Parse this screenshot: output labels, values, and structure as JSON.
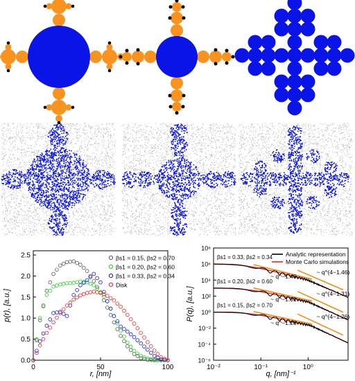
{
  "colors": {
    "blue": "#0a14e6",
    "orange": "#f7931e",
    "black": "#000000",
    "grey_points": "#b8b8b8",
    "green": "#22cc22",
    "red": "#ee2222",
    "dark_grey": "#555555",
    "fit_orange": "#ef8c10"
  },
  "diagrams": [
    {
      "name": "fractal-disk-two-level"
    },
    {
      "name": "fractal-disk-three-level"
    },
    {
      "name": "fractal-cross-of-disks"
    }
  ],
  "simulations": [
    {
      "name": "monte-carlo-two-level"
    },
    {
      "name": "monte-carlo-three-level"
    },
    {
      "name": "monte-carlo-cross"
    }
  ],
  "chart_data": [
    {
      "type": "scatter",
      "xlabel": "r, [nm]",
      "ylabel": "p(r), [a.u.]",
      "xlim": [
        0,
        100
      ],
      "ylim": [
        0,
        2.6
      ],
      "xticks": [
        0,
        50,
        100
      ],
      "yticks": [
        0.0,
        0.5,
        1.0,
        1.5,
        2.0,
        2.5
      ],
      "ytick_labels": [
        "0.0",
        "0.5",
        "1.0",
        "1.5",
        "2.0",
        "2.5"
      ],
      "legend_position": "top-right",
      "series": [
        {
          "name": "βs1 = 0.15, βs2 = 0.70",
          "color_key": "dark_grey",
          "x": [
            0,
            5,
            10,
            15,
            20,
            25,
            30,
            35,
            40,
            45,
            50,
            55,
            60,
            65,
            70,
            75,
            80,
            85,
            90,
            95,
            100
          ],
          "y": [
            0.0,
            0.95,
            1.65,
            2.05,
            2.25,
            2.33,
            2.35,
            2.27,
            2.12,
            1.88,
            1.6,
            1.25,
            0.9,
            0.58,
            0.33,
            0.15,
            0.05,
            0.01,
            0.0,
            0.0,
            0.0
          ]
        },
        {
          "name": "βs1 = 0.20, βs2 = 0.60",
          "color_key": "green",
          "x": [
            0,
            5,
            10,
            15,
            20,
            25,
            30,
            35,
            40,
            45,
            50,
            55,
            60,
            65,
            70,
            75,
            80,
            85,
            90,
            95,
            100
          ],
          "y": [
            0.0,
            1.0,
            1.55,
            1.75,
            1.8,
            1.83,
            1.84,
            1.87,
            1.85,
            1.78,
            1.62,
            1.4,
            1.05,
            0.7,
            0.42,
            0.22,
            0.1,
            0.04,
            0.01,
            0.0,
            0.0
          ]
        },
        {
          "name": "βs1 = 0.33, βs2 = 0.34",
          "color_key": "blue",
          "x": [
            0,
            5,
            10,
            15,
            20,
            25,
            30,
            35,
            40,
            45,
            50,
            55,
            60,
            65,
            70,
            75,
            80,
            85,
            90,
            95,
            100
          ],
          "y": [
            0.0,
            0.45,
            0.82,
            1.12,
            1.15,
            1.05,
            1.55,
            1.78,
            1.9,
            2.05,
            1.85,
            1.4,
            1.05,
            0.8,
            0.68,
            0.55,
            0.4,
            0.25,
            0.1,
            0.02,
            0.0
          ]
        },
        {
          "name": "Disk",
          "color_key": "red",
          "x": [
            0,
            5,
            10,
            15,
            20,
            25,
            30,
            35,
            40,
            45,
            50,
            55,
            60,
            65,
            70,
            75,
            80,
            85,
            90,
            95,
            100
          ],
          "y": [
            0.0,
            0.35,
            0.65,
            0.9,
            1.12,
            1.3,
            1.44,
            1.54,
            1.6,
            1.63,
            1.6,
            1.53,
            1.42,
            1.27,
            1.08,
            0.87,
            0.65,
            0.43,
            0.23,
            0.07,
            0.0
          ]
        }
      ]
    },
    {
      "type": "line",
      "xlabel": "q, [nm]⁻¹",
      "ylabel": "P(q), [a.u.]",
      "xscale": "log",
      "yscale": "log",
      "xlim": [
        0.01,
        7
      ],
      "ylim": [
        1e-06,
        100000000.0
      ],
      "xtick_labels": [
        "10⁻²",
        "10⁻¹",
        "10⁰"
      ],
      "xticks": [
        0.01,
        0.1,
        1
      ],
      "ytick_labels": [
        "10⁻⁶",
        "10⁻⁴",
        "10⁻²",
        "10⁰",
        "10²",
        "10⁴",
        "10⁶",
        "10⁸"
      ],
      "yticks": [
        1e-06,
        0.0001,
        0.01,
        1,
        100.0,
        10000.0,
        1000000.0,
        100000000.0
      ],
      "legend_position": "top-right",
      "legend": [
        "Analytic representation",
        "Monte Carlo simulations"
      ],
      "series": [
        {
          "name": "Analytic representation",
          "color_key": "black"
        },
        {
          "name": "Monte Carlo simulations",
          "color_key": "red"
        }
      ],
      "curves": [
        {
          "label": "βs1 = 0.33, βs2 = 0.34",
          "plateau": 1000000,
          "knee": 0.045,
          "slope1": -1.46,
          "slope2": -2.54,
          "cross": 0.9,
          "fit1_label": "~ q^−1.46",
          "fit2_label": "~ q^(4−1.46)"
        },
        {
          "label": "βs1 = 0.20, βs2 = 0.60",
          "plateau": 1000,
          "knee": 0.05,
          "slope1": -1.31,
          "slope2": -2.69,
          "cross": 1.0,
          "fit1_label": "~ q^−1.31",
          "fit2_label": "~ q^(4−1.31)"
        },
        {
          "label": "βs1 = 0.15, βs2 = 0.70",
          "plateau": 1,
          "knee": 0.055,
          "slope1": -1.26,
          "slope2": -2.74,
          "cross": 1.1,
          "fit1_label": "~ q^−1.26",
          "fit2_label": "~ q^(4−1.26)"
        }
      ]
    }
  ]
}
